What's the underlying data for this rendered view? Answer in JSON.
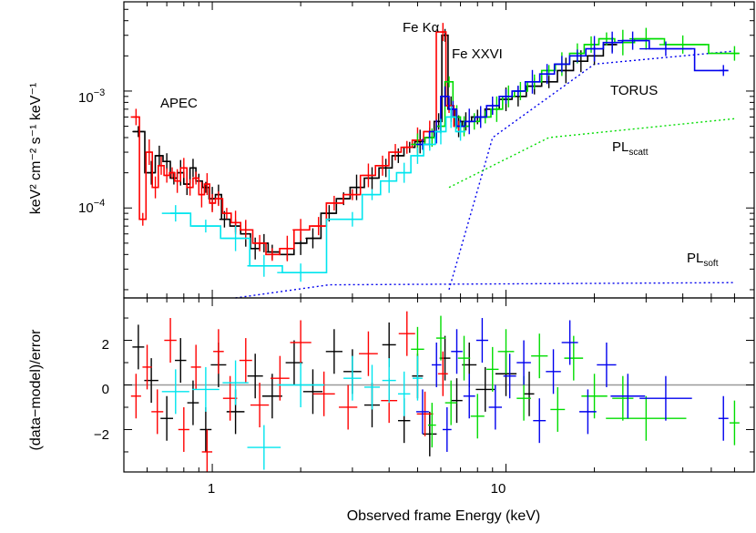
{
  "chart_data": {
    "type": "scatter",
    "xlabel": "Observed frame Energy (keV)",
    "xscale": "log",
    "xlim": [
      0.5,
      70
    ],
    "xticklabels": [
      "1",
      "10"
    ],
    "panels": [
      {
        "ylabel": "keV² cm⁻² s⁻¹ keV⁻¹",
        "yscale": "log",
        "ylim": [
          1.7e-05,
          0.0058
        ],
        "yticks": [
          {
            "value": 0.001,
            "base": "10",
            "exp": "−3"
          },
          {
            "value": 0.0001,
            "base": "10",
            "exp": "−4"
          }
        ],
        "annotations": {
          "apec": "APEC",
          "fe_ka": "Fe Kα",
          "fe_xxvi": "Fe XXVI",
          "torus": "TORUS",
          "pl_scatt_main": "PL",
          "pl_scatt_sub": "scatt",
          "pl_soft_main": "PL",
          "pl_soft_sub": "soft"
        },
        "series": [
          {
            "color": "#000000",
            "x": [
              0.56,
              0.62,
              0.66,
              0.7,
              0.74,
              0.78,
              0.82,
              0.86,
              0.9,
              0.95,
              1.0,
              1.05,
              1.1,
              1.2,
              1.3,
              1.4,
              1.5,
              1.6,
              1.8,
              2.0,
              2.2,
              2.5,
              2.8,
              3.1,
              3.5,
              3.9,
              4.3,
              4.7,
              5.1,
              5.5,
              5.9,
              6.2,
              6.5,
              6.9,
              7.3,
              8.0,
              9.0,
              10.0,
              11.0,
              12.5,
              14.0,
              16.0,
              18.0,
              20.0,
              23.0
            ],
            "y": [
              0.00045,
              0.0002,
              0.00028,
              0.00025,
              0.00018,
              0.0002,
              0.00016,
              0.00022,
              0.00017,
              0.00015,
              0.00012,
              0.00013,
              8e-05,
              7e-05,
              6e-05,
              4.5e-05,
              5e-05,
              4.2e-05,
              4e-05,
              5e-05,
              5.5e-05,
              9e-05,
              0.00012,
              0.00015,
              0.00018,
              0.00022,
              0.00028,
              0.00033,
              0.00037,
              0.0004,
              0.00055,
              0.003,
              0.0007,
              0.0005,
              0.00055,
              0.0006,
              0.0007,
              0.00085,
              0.0009,
              0.0011,
              0.0012,
              0.0015,
              0.0018,
              0.002,
              0.0025
            ]
          },
          {
            "color": "#ff0000",
            "x": [
              0.55,
              0.58,
              0.61,
              0.64,
              0.67,
              0.7,
              0.73,
              0.76,
              0.8,
              0.84,
              0.88,
              0.92,
              0.96,
              1.0,
              1.05,
              1.12,
              1.2,
              1.3,
              1.45,
              1.6,
              1.8,
              2.0,
              2.3,
              2.6,
              3.0,
              3.4,
              3.8,
              4.2,
              4.6,
              5.0,
              5.5,
              6.1,
              6.4,
              6.9
            ],
            "y": [
              0.0006,
              8e-05,
              0.0003,
              0.00015,
              0.00023,
              0.00019,
              0.0002,
              0.00017,
              0.00022,
              0.00015,
              0.00018,
              0.00013,
              0.00016,
              0.00011,
              0.00012,
              9e-05,
              7.5e-05,
              6.5e-05,
              5e-05,
              4e-05,
              4.5e-05,
              6.5e-05,
              7e-05,
              0.00011,
              0.00013,
              0.00019,
              0.00023,
              0.0003,
              0.00033,
              0.00038,
              0.00045,
              0.0032,
              0.00075,
              0.0005
            ]
          },
          {
            "color": "#00dd00",
            "x": [
              5.0,
              5.6,
              6.0,
              6.4,
              6.8,
              7.2,
              7.8,
              8.5,
              9.3,
              10.2,
              11.2,
              12.5,
              14.0,
              15.5,
              17.5,
              19.5,
              22.0,
              25.0,
              30.0,
              40.0,
              60.0
            ],
            "y": [
              0.00035,
              0.0004,
              0.0005,
              0.0012,
              0.0006,
              0.0005,
              0.00055,
              0.0006,
              0.0007,
              0.0009,
              0.001,
              0.0012,
              0.0015,
              0.0017,
              0.0021,
              0.0025,
              0.0028,
              0.0026,
              0.0028,
              0.0025,
              0.0021
            ]
          },
          {
            "color": "#0000ee",
            "x": [
              5.2,
              5.8,
              6.2,
              6.6,
              7.0,
              7.5,
              8.2,
              9.0,
              10.0,
              11.0,
              12.3,
              13.8,
              15.5,
              17.5,
              20.0,
              23.0,
              27.0,
              35.0,
              55.0
            ],
            "y": [
              0.00035,
              0.00045,
              0.0009,
              0.0007,
              0.0005,
              0.00055,
              0.0006,
              0.00075,
              0.0009,
              0.001,
              0.0012,
              0.0014,
              0.0017,
              0.002,
              0.0023,
              0.0026,
              0.0027,
              0.0023,
              0.0015
            ]
          },
          {
            "color": "#00e5ee",
            "x": [
              0.75,
              0.95,
              1.2,
              1.5,
              2.0,
              3.0,
              3.5,
              4.0,
              4.5,
              5.0,
              5.5,
              6.0,
              6.5,
              7.0
            ],
            "y": [
              9e-05,
              7e-05,
              5.5e-05,
              3.2e-05,
              2.8e-05,
              8e-05,
              0.00013,
              0.00017,
              0.0002,
              0.00028,
              0.00035,
              0.00045,
              0.0006,
              0.00045
            ]
          }
        ]
      },
      {
        "ylabel": "(data−model)/error",
        "yscale": "linear",
        "ylim": [
          -3.9,
          3.9
        ],
        "yticklabels": [
          "2",
          "0",
          "−2"
        ],
        "series": [
          {
            "color": "#000000",
            "x": [
              0.56,
              0.62,
              0.7,
              0.78,
              0.86,
              0.95,
              1.05,
              1.2,
              1.4,
              1.6,
              1.9,
              2.2,
              2.6,
              3.0,
              3.5,
              4.0,
              4.5,
              5.0,
              5.5,
              6.2,
              6.8,
              7.5,
              8.5,
              10.0,
              12.0
            ],
            "y": [
              1.7,
              0.2,
              -1.5,
              1.1,
              -0.8,
              -2.0,
              0.9,
              -1.2,
              0.4,
              -0.5,
              1.0,
              -0.3,
              1.5,
              0.6,
              -0.9,
              1.8,
              -1.6,
              0.4,
              -2.2,
              1.2,
              -0.7,
              0.9,
              -0.2,
              0.5,
              -0.4
            ]
          },
          {
            "color": "#ff0000",
            "x": [
              0.55,
              0.6,
              0.65,
              0.72,
              0.8,
              0.88,
              0.96,
              1.05,
              1.15,
              1.3,
              1.45,
              1.7,
              2.0,
              2.4,
              2.9,
              3.4,
              4.0,
              4.6,
              5.3,
              6.1
            ],
            "y": [
              -0.5,
              0.8,
              -1.2,
              2.0,
              -2.0,
              0.8,
              -3.0,
              1.5,
              -0.6,
              1.1,
              -0.9,
              0.3,
              1.9,
              -0.4,
              -1.0,
              1.4,
              -0.7,
              2.3,
              -1.3,
              0.5
            ]
          },
          {
            "color": "#00dd00",
            "x": [
              5.0,
              5.6,
              6.0,
              6.5,
              7.2,
              8.0,
              9.0,
              10.0,
              11.5,
              13.0,
              15.0,
              17.0,
              20.0,
              25.0,
              30.0,
              60.0
            ],
            "y": [
              1.6,
              -1.8,
              2.1,
              -0.8,
              1.2,
              -1.4,
              0.7,
              1.5,
              -0.6,
              1.3,
              -1.1,
              1.2,
              -0.5,
              -0.6,
              -1.5,
              -1.7
            ]
          },
          {
            "color": "#0000ee",
            "x": [
              5.2,
              5.8,
              6.3,
              6.8,
              7.5,
              8.3,
              9.2,
              10.3,
              11.5,
              13.0,
              14.5,
              16.5,
              19.0,
              22.0,
              26.0,
              35.0,
              55.0
            ],
            "y": [
              -1.2,
              0.9,
              -2.0,
              1.5,
              -0.5,
              2.0,
              -1.0,
              0.4,
              1.0,
              -1.6,
              0.6,
              1.9,
              -1.2,
              0.9,
              -0.5,
              -0.6,
              -1.5
            ]
          },
          {
            "color": "#00e5ee",
            "x": [
              0.75,
              0.95,
              1.2,
              1.5,
              2.0,
              3.0,
              3.5,
              4.0,
              4.5,
              5.0
            ],
            "y": [
              -0.3,
              -0.2,
              0.1,
              -2.8,
              0.0,
              0.3,
              -0.1,
              0.2,
              -0.4,
              0.3
            ]
          }
        ]
      }
    ]
  }
}
